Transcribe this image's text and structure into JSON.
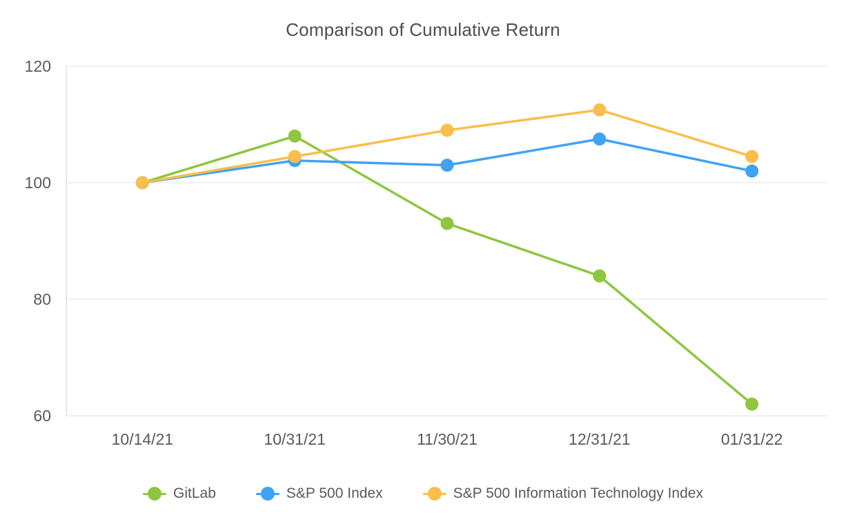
{
  "chart_data": {
    "type": "line",
    "title": "Comparison of Cumulative Return",
    "x": [
      "10/14/21",
      "10/31/21",
      "11/30/21",
      "12/31/21",
      "01/31/22"
    ],
    "series": [
      {
        "name": "GitLab",
        "color": "#8DC63F",
        "values": [
          100,
          108,
          93,
          84,
          62
        ]
      },
      {
        "name": "S&P 500 Index",
        "color": "#3FA2F4",
        "values": [
          100,
          103.8,
          103,
          107.5,
          102
        ]
      },
      {
        "name": "S&P 500 Information Technology Index",
        "color": "#F9BE4B",
        "values": [
          100,
          104.5,
          109,
          112.5,
          104.5
        ]
      }
    ],
    "ylim": [
      60,
      120
    ],
    "yticks": [
      60,
      80,
      100,
      120
    ],
    "grid": true,
    "legend_position": "bottom",
    "xlabel": "",
    "ylabel": "",
    "colors": {
      "gridline": "#e6e6e6",
      "axis_line": "#d9d9d9",
      "tick_text": "#595959",
      "title_text": "#4d4d4d",
      "background": "#ffffff"
    }
  }
}
